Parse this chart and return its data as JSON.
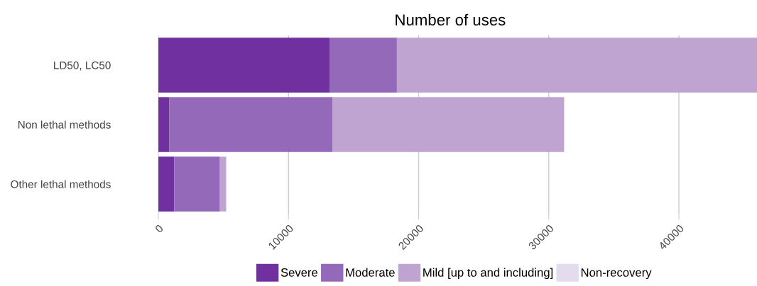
{
  "chart_data": {
    "type": "bar",
    "orientation": "horizontal",
    "stacked": true,
    "title": "Number of uses",
    "categories": [
      "LD50, LC50",
      "Non lethal methods",
      "Other lethal methods"
    ],
    "series": [
      {
        "name": "Severe",
        "color": "#7030a0",
        "values": [
          13150,
          850,
          1220
        ]
      },
      {
        "name": "Moderate",
        "color": "#9569b9",
        "values": [
          5180,
          12550,
          3510
        ]
      },
      {
        "name": "Mild [up to and including]",
        "color": "#bfa4d2",
        "values": [
          27670,
          17780,
          480
        ]
      },
      {
        "name": "Non-recovery",
        "color": "#e4dcec",
        "values": [
          0,
          0,
          0
        ]
      }
    ],
    "xlim": [
      0,
      46000
    ],
    "xticks": [
      0,
      10000,
      20000,
      30000,
      40000
    ],
    "grid": "x",
    "legend": "bottom"
  }
}
